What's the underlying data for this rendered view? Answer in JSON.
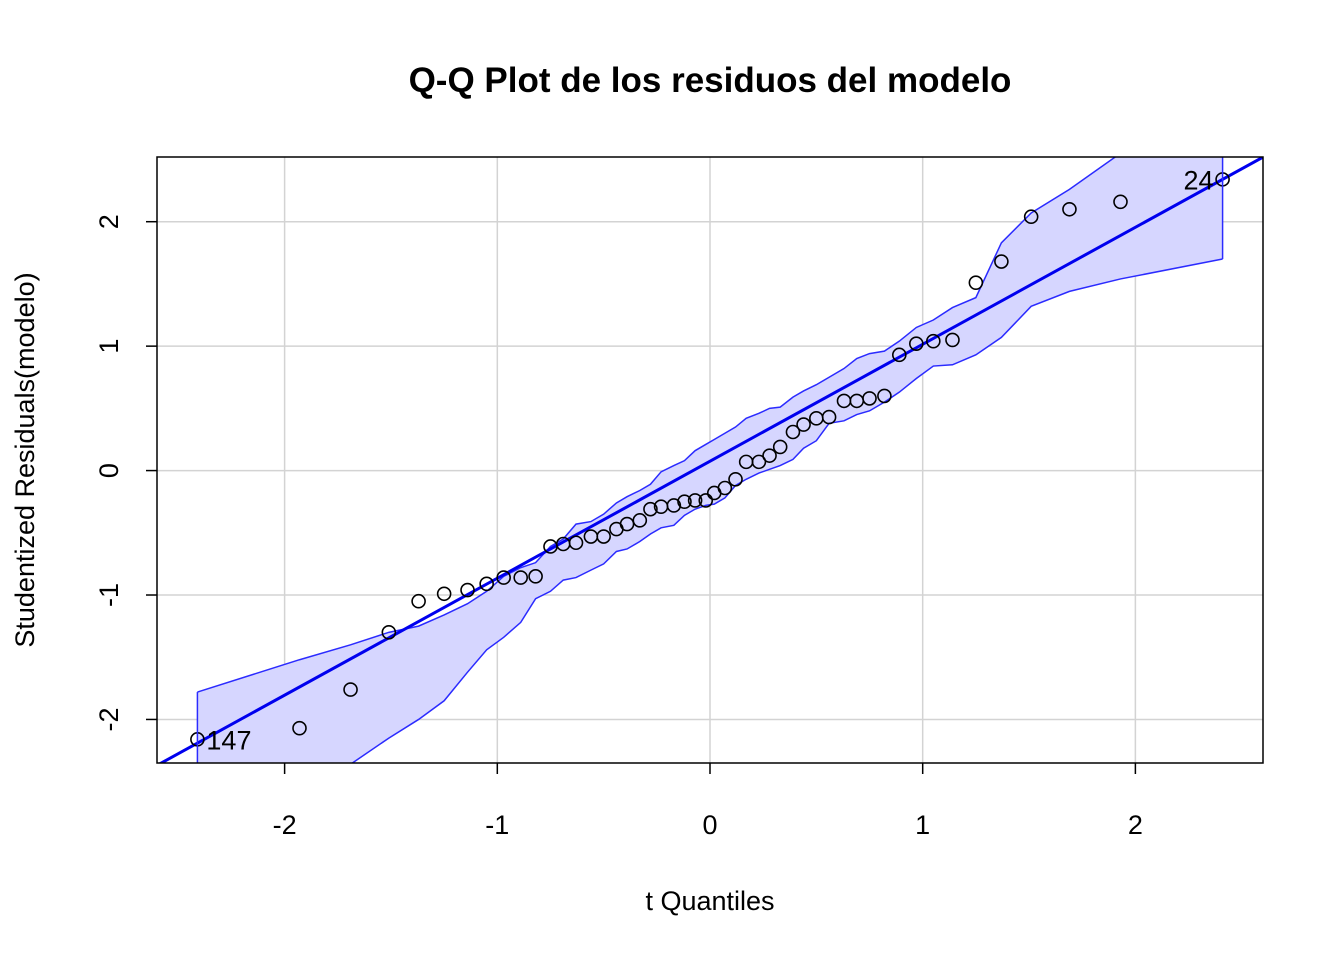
{
  "chart_data": {
    "type": "scatter",
    "title": "Q-Q Plot de los residuos del modelo",
    "xlabel": "t Quantiles",
    "ylabel": "Studentized Residuals(modelo)",
    "xlim": [
      -2.6,
      2.6
    ],
    "ylim": [
      -2.35,
      2.52
    ],
    "xticks": [
      -2,
      -1,
      0,
      1,
      2
    ],
    "yticks": [
      -2,
      -1,
      0,
      1,
      2
    ],
    "xtick_labels": [
      "-2",
      "-1",
      "0",
      "1",
      "2"
    ],
    "ytick_labels": [
      "-2",
      "-1",
      "0",
      "1",
      "2"
    ],
    "grid": true,
    "colors": {
      "line": "#0000ee",
      "band_fill": "#d6d6ff",
      "band_edge": "#2b2bff",
      "points": "#000000",
      "grid": "#d3d3d3"
    },
    "reference_line": {
      "slope": 0.94,
      "intercept": 0.075
    },
    "points": [
      {
        "x": -2.41,
        "y": -2.16
      },
      {
        "x": -1.93,
        "y": -2.07
      },
      {
        "x": -1.69,
        "y": -1.76
      },
      {
        "x": -1.51,
        "y": -1.3
      },
      {
        "x": -1.37,
        "y": -1.05
      },
      {
        "x": -1.25,
        "y": -0.99
      },
      {
        "x": -1.14,
        "y": -0.96
      },
      {
        "x": -1.05,
        "y": -0.91
      },
      {
        "x": -0.97,
        "y": -0.86
      },
      {
        "x": -0.89,
        "y": -0.86
      },
      {
        "x": -0.82,
        "y": -0.85
      },
      {
        "x": -0.75,
        "y": -0.61
      },
      {
        "x": -0.69,
        "y": -0.59
      },
      {
        "x": -0.63,
        "y": -0.58
      },
      {
        "x": -0.56,
        "y": -0.53
      },
      {
        "x": -0.5,
        "y": -0.53
      },
      {
        "x": -0.44,
        "y": -0.47
      },
      {
        "x": -0.39,
        "y": -0.43
      },
      {
        "x": -0.33,
        "y": -0.4
      },
      {
        "x": -0.28,
        "y": -0.31
      },
      {
        "x": -0.23,
        "y": -0.29
      },
      {
        "x": -0.17,
        "y": -0.28
      },
      {
        "x": -0.12,
        "y": -0.25
      },
      {
        "x": -0.07,
        "y": -0.24
      },
      {
        "x": -0.02,
        "y": -0.24
      },
      {
        "x": 0.02,
        "y": -0.18
      },
      {
        "x": 0.07,
        "y": -0.14
      },
      {
        "x": 0.12,
        "y": -0.07
      },
      {
        "x": 0.17,
        "y": 0.07
      },
      {
        "x": 0.23,
        "y": 0.07
      },
      {
        "x": 0.28,
        "y": 0.12
      },
      {
        "x": 0.33,
        "y": 0.19
      },
      {
        "x": 0.39,
        "y": 0.31
      },
      {
        "x": 0.44,
        "y": 0.37
      },
      {
        "x": 0.5,
        "y": 0.42
      },
      {
        "x": 0.56,
        "y": 0.43
      },
      {
        "x": 0.63,
        "y": 0.56
      },
      {
        "x": 0.69,
        "y": 0.56
      },
      {
        "x": 0.75,
        "y": 0.58
      },
      {
        "x": 0.82,
        "y": 0.6
      },
      {
        "x": 0.89,
        "y": 0.93
      },
      {
        "x": 0.97,
        "y": 1.02
      },
      {
        "x": 1.05,
        "y": 1.04
      },
      {
        "x": 1.14,
        "y": 1.05
      },
      {
        "x": 1.25,
        "y": 1.51
      },
      {
        "x": 1.37,
        "y": 1.68
      },
      {
        "x": 1.51,
        "y": 2.04
      },
      {
        "x": 1.69,
        "y": 2.1
      },
      {
        "x": 1.93,
        "y": 2.16
      },
      {
        "x": 2.41,
        "y": 2.34
      }
    ],
    "point_labels": [
      {
        "text": "147",
        "x": -2.41,
        "y": -2.16,
        "side": "right"
      },
      {
        "text": "24",
        "x": 2.41,
        "y": 2.34,
        "side": "left"
      }
    ],
    "envelope": {
      "x": [
        -2.41,
        -1.93,
        -1.69,
        -1.51,
        -1.37,
        -1.25,
        -1.14,
        -1.05,
        -0.97,
        -0.89,
        -0.82,
        -0.75,
        -0.69,
        -0.63,
        -0.56,
        -0.5,
        -0.44,
        -0.39,
        -0.33,
        -0.28,
        -0.23,
        -0.17,
        -0.12,
        -0.07,
        -0.02,
        0.02,
        0.07,
        0.12,
        0.17,
        0.23,
        0.28,
        0.33,
        0.39,
        0.44,
        0.5,
        0.56,
        0.63,
        0.69,
        0.75,
        0.82,
        0.89,
        0.97,
        1.05,
        1.14,
        1.25,
        1.37,
        1.51,
        1.69,
        1.93,
        2.41
      ],
      "upper": [
        -1.78,
        -1.52,
        -1.4,
        -1.3,
        -1.25,
        -1.16,
        -1.07,
        -0.97,
        -0.85,
        -0.78,
        -0.74,
        -0.61,
        -0.55,
        -0.43,
        -0.41,
        -0.35,
        -0.26,
        -0.21,
        -0.16,
        -0.11,
        -0.01,
        0.04,
        0.08,
        0.16,
        0.21,
        0.25,
        0.3,
        0.35,
        0.42,
        0.46,
        0.5,
        0.51,
        0.59,
        0.64,
        0.69,
        0.75,
        0.82,
        0.9,
        0.94,
        0.96,
        1.04,
        1.15,
        1.21,
        1.31,
        1.39,
        1.83,
        2.07,
        2.26,
        2.55,
        2.65
      ],
      "lower": [
        -2.42,
        -2.52,
        -2.36,
        -2.15,
        -2.0,
        -1.85,
        -1.62,
        -1.44,
        -1.34,
        -1.22,
        -1.03,
        -0.97,
        -0.88,
        -0.86,
        -0.8,
        -0.75,
        -0.65,
        -0.63,
        -0.57,
        -0.51,
        -0.46,
        -0.44,
        -0.36,
        -0.31,
        -0.28,
        -0.27,
        -0.22,
        -0.12,
        -0.07,
        -0.02,
        0.01,
        0.04,
        0.09,
        0.18,
        0.24,
        0.38,
        0.4,
        0.45,
        0.48,
        0.55,
        0.63,
        0.74,
        0.84,
        0.85,
        0.93,
        1.07,
        1.32,
        1.44,
        1.54,
        1.7
      ]
    }
  }
}
